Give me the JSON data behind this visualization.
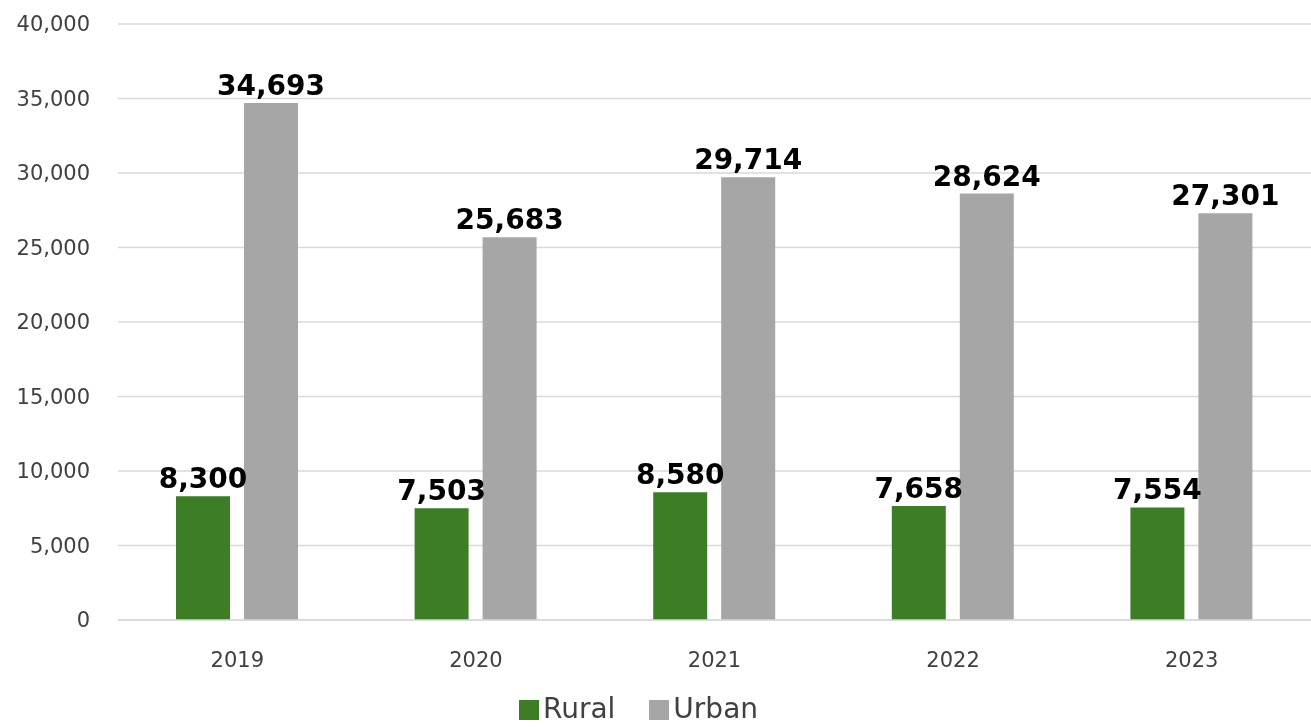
{
  "chart_data": {
    "type": "bar",
    "categories": [
      "2019",
      "2020",
      "2021",
      "2022",
      "2023"
    ],
    "series": [
      {
        "name": "Rural",
        "color": "#3d7d25",
        "values": [
          8300,
          7503,
          8580,
          7658,
          7554
        ],
        "value_labels": [
          "8,300",
          "7,503",
          "8,580",
          "7,658",
          "7,554"
        ]
      },
      {
        "name": "Urban",
        "color": "#a6a6a6",
        "values": [
          34693,
          25683,
          29714,
          28624,
          27301
        ],
        "value_labels": [
          "34,693",
          "25,683",
          "29,714",
          "28,624",
          "27,301"
        ]
      }
    ],
    "ylim": [
      0,
      40000
    ],
    "yticks": [
      {
        "value": 0,
        "label": "0"
      },
      {
        "value": 5000,
        "label": "5,000"
      },
      {
        "value": 10000,
        "label": "10,000"
      },
      {
        "value": 15000,
        "label": "15,000"
      },
      {
        "value": 20000,
        "label": "20,000"
      },
      {
        "value": 25000,
        "label": "25,000"
      },
      {
        "value": 30000,
        "label": "30,000"
      },
      {
        "value": 35000,
        "label": "35,000"
      },
      {
        "value": 40000,
        "label": "40,000"
      }
    ],
    "grid": "y",
    "legend": "bottom"
  }
}
